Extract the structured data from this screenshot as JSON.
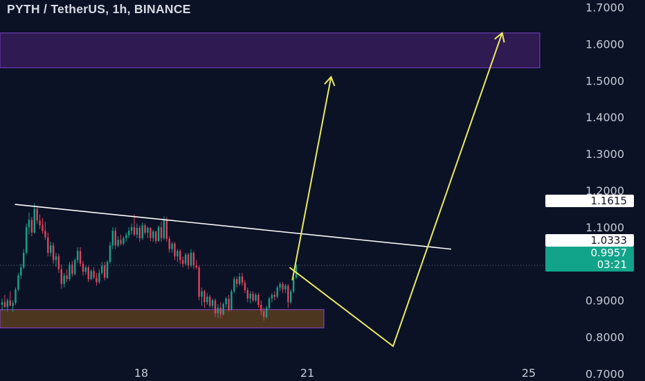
{
  "header": {
    "title": "PYTH / TetherUS, 1h, BINANCE"
  },
  "colors": {
    "background": "#0b1226",
    "candle_up": "#15a389",
    "candle_down": "#e5405c",
    "resistance_zone": "#2f1a52",
    "resistance_zone_border": "#7c3fc7",
    "support_zone": "#4d3620",
    "support_zone_border": "#8e48d6",
    "trendline": "#ffffff",
    "projection": "#ecec5c"
  },
  "chart_data": {
    "type": "candlestick",
    "symbol": "PYTH / TetherUS",
    "timeframe": "1h",
    "exchange": "BINANCE",
    "y_axis": {
      "ticks": [
        "1.7000",
        "1.6000",
        "1.5000",
        "1.4000",
        "1.3000",
        "1.2000",
        "1.1000",
        "0.9000",
        "0.8000",
        "0.7000"
      ],
      "range": [
        0.68,
        1.72
      ]
    },
    "x_axis": {
      "ticks": [
        "18",
        "21",
        "25"
      ],
      "tick_days": [
        18,
        21,
        25
      ],
      "range_days": [
        15.45,
        25.3
      ]
    },
    "price_labels": [
      {
        "value": "1.1615",
        "style": "white"
      },
      {
        "value": "1.0333",
        "style": "white"
      },
      {
        "value": "0.9957",
        "countdown": "03:21",
        "style": "green"
      }
    ],
    "current_price": 0.9957,
    "zones": [
      {
        "name": "resistance",
        "y_from": 1.535,
        "y_to": 1.63,
        "x_from_day": 15.45,
        "x_to_day": 25.2
      },
      {
        "name": "support",
        "y_from": 0.825,
        "y_to": 0.875,
        "x_from_day": 15.45,
        "x_to_day": 21.3
      }
    ],
    "trendline": {
      "points": [
        [
          15.72,
          1.162
        ],
        [
          23.6,
          1.04
        ]
      ]
    },
    "projections": [
      {
        "name": "bullish-breakout",
        "points": [
          [
            20.73,
            0.955
          ],
          [
            21.43,
            1.51
          ]
        ]
      },
      {
        "name": "retest-then-rally",
        "points": [
          [
            20.68,
            0.99
          ],
          [
            22.55,
            0.775
          ],
          [
            24.52,
            1.63
          ]
        ]
      }
    ],
    "candles": [
      {
        "o": 0.888,
        "h": 0.905,
        "l": 0.872,
        "c": 0.895
      },
      {
        "o": 0.895,
        "h": 0.915,
        "l": 0.88,
        "c": 0.882
      },
      {
        "o": 0.882,
        "h": 0.905,
        "l": 0.87,
        "c": 0.9
      },
      {
        "o": 0.9,
        "h": 0.925,
        "l": 0.89,
        "c": 0.885
      },
      {
        "o": 0.885,
        "h": 0.9,
        "l": 0.868,
        "c": 0.893
      },
      {
        "o": 0.893,
        "h": 0.935,
        "l": 0.888,
        "c": 0.93
      },
      {
        "o": 0.93,
        "h": 0.975,
        "l": 0.925,
        "c": 0.968
      },
      {
        "o": 0.968,
        "h": 1.0,
        "l": 0.958,
        "c": 0.99
      },
      {
        "o": 0.99,
        "h": 1.04,
        "l": 0.985,
        "c": 1.03
      },
      {
        "o": 1.03,
        "h": 1.11,
        "l": 1.025,
        "c": 1.1
      },
      {
        "o": 1.1,
        "h": 1.14,
        "l": 1.08,
        "c": 1.12
      },
      {
        "o": 1.12,
        "h": 1.128,
        "l": 1.075,
        "c": 1.085
      },
      {
        "o": 1.085,
        "h": 1.165,
        "l": 1.082,
        "c": 1.15
      },
      {
        "o": 1.15,
        "h": 1.158,
        "l": 1.11,
        "c": 1.118
      },
      {
        "o": 1.118,
        "h": 1.135,
        "l": 1.095,
        "c": 1.105
      },
      {
        "o": 1.105,
        "h": 1.125,
        "l": 1.082,
        "c": 1.09
      },
      {
        "o": 1.09,
        "h": 1.115,
        "l": 1.065,
        "c": 1.072
      },
      {
        "o": 1.072,
        "h": 1.085,
        "l": 1.02,
        "c": 1.03
      },
      {
        "o": 1.03,
        "h": 1.06,
        "l": 1.02,
        "c": 1.05
      },
      {
        "o": 1.05,
        "h": 1.058,
        "l": 1.0,
        "c": 1.01
      },
      {
        "o": 1.01,
        "h": 1.03,
        "l": 0.992,
        "c": 1.02
      },
      {
        "o": 1.02,
        "h": 1.028,
        "l": 0.975,
        "c": 0.985
      },
      {
        "o": 0.985,
        "h": 0.998,
        "l": 0.932,
        "c": 0.945
      },
      {
        "o": 0.945,
        "h": 0.975,
        "l": 0.935,
        "c": 0.968
      },
      {
        "o": 0.968,
        "h": 0.985,
        "l": 0.95,
        "c": 0.958
      },
      {
        "o": 0.958,
        "h": 1.005,
        "l": 0.952,
        "c": 0.998
      },
      {
        "o": 0.998,
        "h": 1.008,
        "l": 0.965,
        "c": 0.972
      },
      {
        "o": 0.972,
        "h": 1.015,
        "l": 0.968,
        "c": 1.01
      },
      {
        "o": 1.01,
        "h": 1.045,
        "l": 1.002,
        "c": 1.035
      },
      {
        "o": 1.035,
        "h": 1.045,
        "l": 0.992,
        "c": 1.0
      },
      {
        "o": 1.0,
        "h": 1.008,
        "l": 0.968,
        "c": 0.978
      },
      {
        "o": 0.978,
        "h": 0.995,
        "l": 0.97,
        "c": 0.99
      },
      {
        "o": 0.99,
        "h": 0.995,
        "l": 0.95,
        "c": 0.958
      },
      {
        "o": 0.958,
        "h": 0.985,
        "l": 0.955,
        "c": 0.98
      },
      {
        "o": 0.98,
        "h": 0.99,
        "l": 0.958,
        "c": 0.962
      },
      {
        "o": 0.962,
        "h": 0.975,
        "l": 0.94,
        "c": 0.95
      },
      {
        "o": 0.95,
        "h": 0.985,
        "l": 0.945,
        "c": 0.975
      },
      {
        "o": 0.975,
        "h": 1.005,
        "l": 0.97,
        "c": 0.995
      },
      {
        "o": 0.995,
        "h": 1.005,
        "l": 0.955,
        "c": 0.962
      },
      {
        "o": 0.962,
        "h": 1.01,
        "l": 0.958,
        "c": 1.005
      },
      {
        "o": 1.005,
        "h": 1.06,
        "l": 1.0,
        "c": 1.05
      },
      {
        "o": 1.05,
        "h": 1.1,
        "l": 1.04,
        "c": 1.09
      },
      {
        "o": 1.09,
        "h": 1.1,
        "l": 1.04,
        "c": 1.05
      },
      {
        "o": 1.05,
        "h": 1.075,
        "l": 1.045,
        "c": 1.065
      },
      {
        "o": 1.065,
        "h": 1.08,
        "l": 1.05,
        "c": 1.055
      },
      {
        "o": 1.055,
        "h": 1.075,
        "l": 1.05,
        "c": 1.07
      },
      {
        "o": 1.07,
        "h": 1.085,
        "l": 1.06,
        "c": 1.078
      },
      {
        "o": 1.078,
        "h": 1.1,
        "l": 1.07,
        "c": 1.09
      },
      {
        "o": 1.09,
        "h": 1.11,
        "l": 1.08,
        "c": 1.1
      },
      {
        "o": 1.1,
        "h": 1.135,
        "l": 1.075,
        "c": 1.08
      },
      {
        "o": 1.08,
        "h": 1.11,
        "l": 1.07,
        "c": 1.098
      },
      {
        "o": 1.098,
        "h": 1.105,
        "l": 1.06,
        "c": 1.07
      },
      {
        "o": 1.07,
        "h": 1.112,
        "l": 1.065,
        "c": 1.105
      },
      {
        "o": 1.105,
        "h": 1.11,
        "l": 1.08,
        "c": 1.085
      },
      {
        "o": 1.085,
        "h": 1.102,
        "l": 1.07,
        "c": 1.098
      },
      {
        "o": 1.098,
        "h": 1.1,
        "l": 1.062,
        "c": 1.07
      },
      {
        "o": 1.07,
        "h": 1.092,
        "l": 1.06,
        "c": 1.088
      },
      {
        "o": 1.088,
        "h": 1.09,
        "l": 1.055,
        "c": 1.062
      },
      {
        "o": 1.062,
        "h": 1.105,
        "l": 1.06,
        "c": 1.1
      },
      {
        "o": 1.1,
        "h": 1.115,
        "l": 1.06,
        "c": 1.07
      },
      {
        "o": 1.07,
        "h": 1.13,
        "l": 1.065,
        "c": 1.12
      },
      {
        "o": 1.12,
        "h": 1.128,
        "l": 1.06,
        "c": 1.068
      },
      {
        "o": 1.068,
        "h": 1.075,
        "l": 1.03,
        "c": 1.04
      },
      {
        "o": 1.04,
        "h": 1.06,
        "l": 1.03,
        "c": 1.055
      },
      {
        "o": 1.055,
        "h": 1.06,
        "l": 1.01,
        "c": 1.02
      },
      {
        "o": 1.02,
        "h": 1.04,
        "l": 1.005,
        "c": 1.035
      },
      {
        "o": 1.035,
        "h": 1.04,
        "l": 1.0,
        "c": 1.01
      },
      {
        "o": 1.01,
        "h": 1.02,
        "l": 0.99,
        "c": 1.0
      },
      {
        "o": 1.0,
        "h": 1.03,
        "l": 0.995,
        "c": 1.025
      },
      {
        "o": 1.025,
        "h": 1.03,
        "l": 0.985,
        "c": 0.995
      },
      {
        "o": 0.995,
        "h": 1.04,
        "l": 0.99,
        "c": 1.03
      },
      {
        "o": 1.03,
        "h": 1.035,
        "l": 0.985,
        "c": 0.995
      },
      {
        "o": 0.995,
        "h": 1.01,
        "l": 0.985,
        "c": 0.99
      },
      {
        "o": 0.99,
        "h": 0.995,
        "l": 0.9,
        "c": 0.91
      },
      {
        "o": 0.91,
        "h": 0.935,
        "l": 0.885,
        "c": 0.925
      },
      {
        "o": 0.925,
        "h": 0.93,
        "l": 0.88,
        "c": 0.895
      },
      {
        "o": 0.895,
        "h": 0.92,
        "l": 0.888,
        "c": 0.91
      },
      {
        "o": 0.91,
        "h": 0.915,
        "l": 0.88,
        "c": 0.885
      },
      {
        "o": 0.885,
        "h": 0.905,
        "l": 0.878,
        "c": 0.9
      },
      {
        "o": 0.9,
        "h": 0.905,
        "l": 0.855,
        "c": 0.865
      },
      {
        "o": 0.865,
        "h": 0.89,
        "l": 0.852,
        "c": 0.88
      },
      {
        "o": 0.88,
        "h": 0.895,
        "l": 0.85,
        "c": 0.862
      },
      {
        "o": 0.862,
        "h": 0.895,
        "l": 0.858,
        "c": 0.89
      },
      {
        "o": 0.89,
        "h": 0.91,
        "l": 0.88,
        "c": 0.905
      },
      {
        "o": 0.905,
        "h": 0.915,
        "l": 0.87,
        "c": 0.875
      },
      {
        "o": 0.875,
        "h": 0.93,
        "l": 0.872,
        "c": 0.925
      },
      {
        "o": 0.925,
        "h": 0.965,
        "l": 0.92,
        "c": 0.958
      },
      {
        "o": 0.958,
        "h": 0.965,
        "l": 0.935,
        "c": 0.945
      },
      {
        "o": 0.945,
        "h": 0.975,
        "l": 0.94,
        "c": 0.965
      },
      {
        "o": 0.965,
        "h": 0.975,
        "l": 0.94,
        "c": 0.948
      },
      {
        "o": 0.948,
        "h": 0.955,
        "l": 0.92,
        "c": 0.928
      },
      {
        "o": 0.928,
        "h": 0.935,
        "l": 0.895,
        "c": 0.905
      },
      {
        "o": 0.905,
        "h": 0.925,
        "l": 0.892,
        "c": 0.918
      },
      {
        "o": 0.918,
        "h": 0.925,
        "l": 0.895,
        "c": 0.9
      },
      {
        "o": 0.9,
        "h": 0.92,
        "l": 0.895,
        "c": 0.915
      },
      {
        "o": 0.915,
        "h": 0.92,
        "l": 0.88,
        "c": 0.888
      },
      {
        "o": 0.888,
        "h": 0.9,
        "l": 0.86,
        "c": 0.87
      },
      {
        "o": 0.87,
        "h": 0.88,
        "l": 0.845,
        "c": 0.855
      },
      {
        "o": 0.855,
        "h": 0.885,
        "l": 0.85,
        "c": 0.88
      },
      {
        "o": 0.88,
        "h": 0.91,
        "l": 0.875,
        "c": 0.905
      },
      {
        "o": 0.905,
        "h": 0.92,
        "l": 0.895,
        "c": 0.915
      },
      {
        "o": 0.915,
        "h": 0.925,
        "l": 0.9,
        "c": 0.91
      },
      {
        "o": 0.91,
        "h": 0.94,
        "l": 0.905,
        "c": 0.935
      },
      {
        "o": 0.935,
        "h": 0.95,
        "l": 0.925,
        "c": 0.945
      },
      {
        "o": 0.945,
        "h": 0.95,
        "l": 0.92,
        "c": 0.93
      },
      {
        "o": 0.93,
        "h": 0.945,
        "l": 0.92,
        "c": 0.94
      },
      {
        "o": 0.94,
        "h": 0.945,
        "l": 0.88,
        "c": 0.895
      },
      {
        "o": 0.895,
        "h": 0.93,
        "l": 0.89,
        "c": 0.925
      },
      {
        "o": 0.925,
        "h": 0.97,
        "l": 0.92,
        "c": 0.962
      },
      {
        "o": 0.962,
        "h": 1.0,
        "l": 0.958,
        "c": 0.9957
      }
    ]
  }
}
